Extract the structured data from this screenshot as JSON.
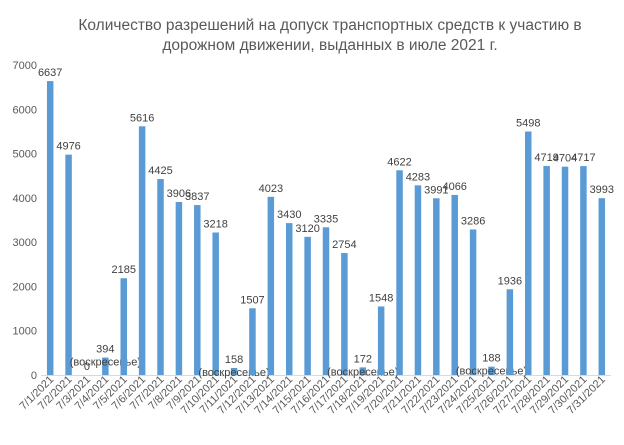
{
  "chart_data": {
    "type": "bar",
    "title_lines": [
      "Количество разрешений на допуск транспортных средств к участию в",
      "дорожном движении, выданных в июле 2021 г."
    ],
    "categories": [
      "7/1/2021",
      "7/2/2021",
      "7/3/2021",
      "7/4/2021",
      "7/5/2021",
      "7/6/2021",
      "7/7/2021",
      "7/8/2021",
      "7/9/2021",
      "7/10/2021",
      "7/11/2021",
      "7/12/2021",
      "7/13/2021",
      "7/14/2021",
      "7/15/2021",
      "7/16/2021",
      "7/17/2021",
      "7/18/2021",
      "7/19/2021",
      "7/20/2021",
      "7/21/2021",
      "7/22/2021",
      "7/23/2021",
      "7/24/2021",
      "7/25/2021",
      "7/26/2021",
      "7/27/2021",
      "7/28/2021",
      "7/29/2021",
      "7/30/2021",
      "7/31/2021"
    ],
    "values": [
      6637,
      4976,
      0,
      394,
      2185,
      5616,
      4425,
      3906,
      3837,
      3218,
      158,
      1507,
      4023,
      3430,
      3120,
      3335,
      2754,
      172,
      1548,
      4622,
      4283,
      3991,
      4066,
      3286,
      188,
      1936,
      5498,
      4719,
      4704,
      4717,
      3993
    ],
    "ylim": [
      0,
      7000
    ],
    "yticks": [
      0,
      1000,
      2000,
      3000,
      4000,
      5000,
      6000,
      7000
    ],
    "bar_color": "#5B9BD5",
    "grid": false,
    "legend": "none",
    "annotations": [
      {
        "index": 3,
        "text": "(воскресенье)"
      },
      {
        "index": 10,
        "text": "(воскресенье)"
      },
      {
        "index": 17,
        "text": "(воскресенье)"
      },
      {
        "index": 24,
        "text": "(воскресенье)"
      }
    ]
  }
}
